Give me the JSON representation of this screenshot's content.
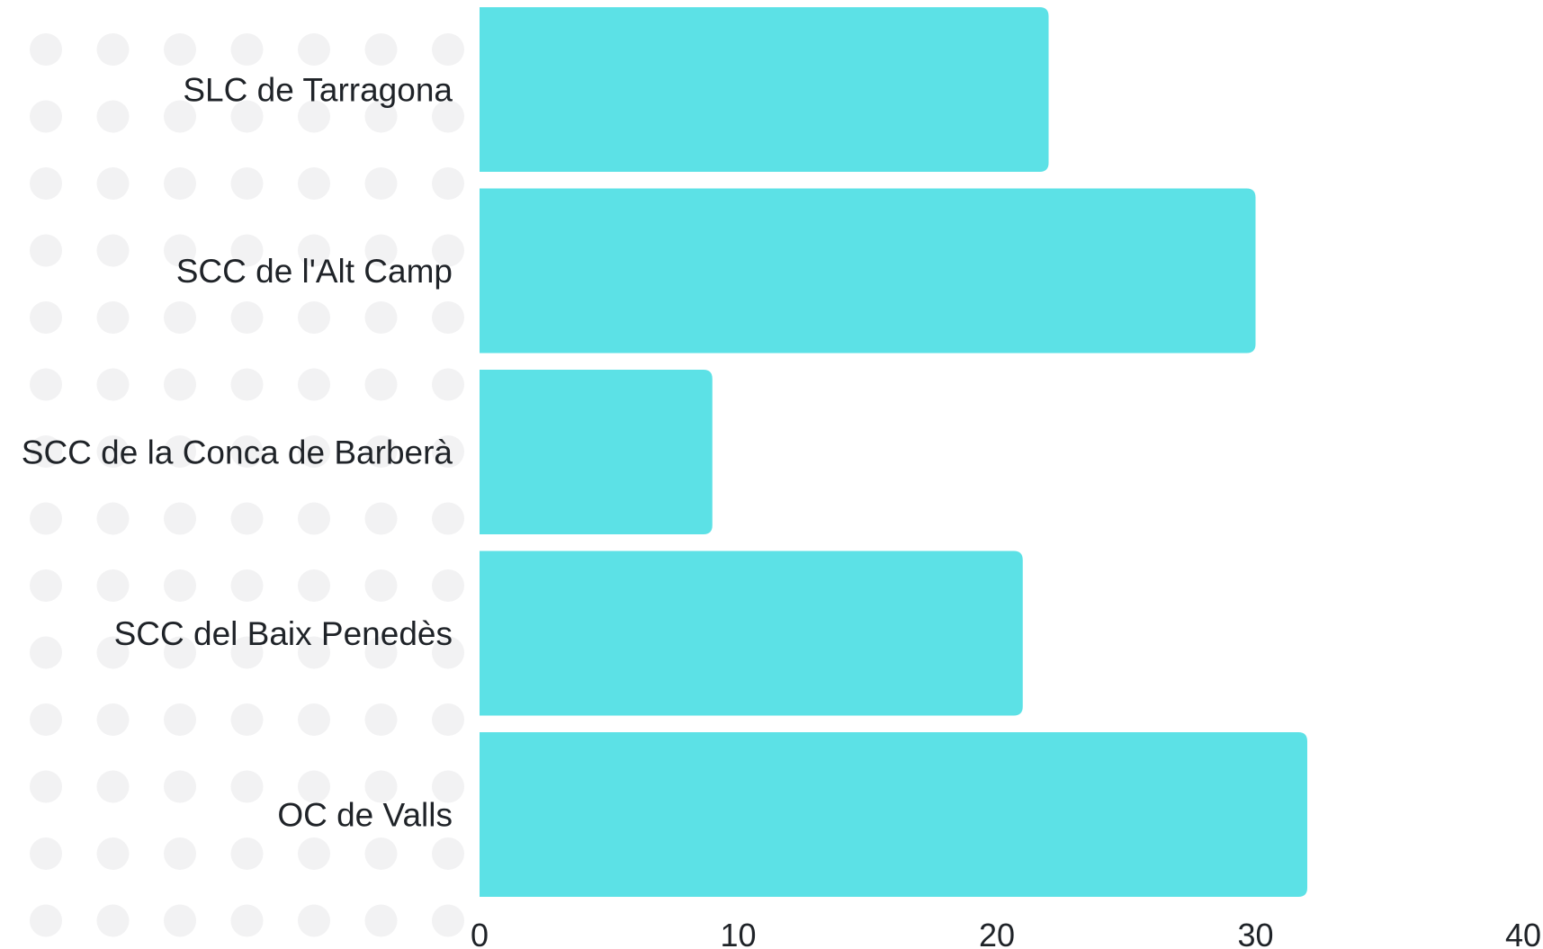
{
  "chart_data": {
    "type": "bar",
    "orientation": "horizontal",
    "categories": [
      "SLC de Tarragona",
      "SCC de l'Alt Camp",
      "SCC de la Conca de Barberà",
      "SCC del Baix Penedès",
      "OC de Valls"
    ],
    "values": [
      22,
      30,
      9,
      21,
      32
    ],
    "xticks": [
      "0",
      "10",
      "20",
      "30",
      "40"
    ],
    "xlim": [
      0,
      40
    ],
    "title": "",
    "xlabel": "",
    "ylabel": "",
    "grid": false,
    "legend": "none",
    "colors": {
      "bar": "#5ce1e6",
      "dots": "#f2f2f3",
      "text": "#1f2328"
    }
  }
}
